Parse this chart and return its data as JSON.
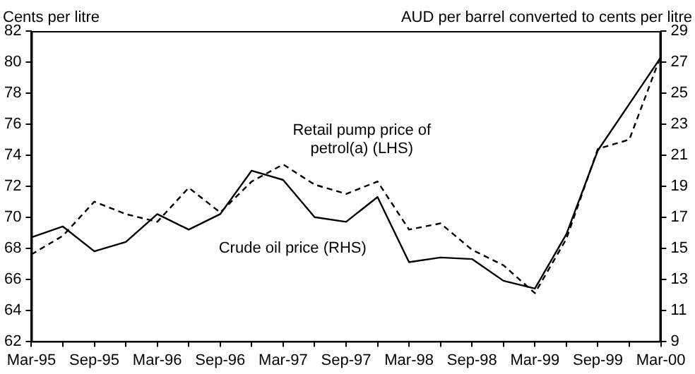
{
  "chart_data": {
    "type": "line",
    "ylabel": "Cents per litre",
    "y2label": "AUD per barrel converted to cents per litre",
    "categories": [
      "Mar-95",
      null,
      "Sep-95",
      null,
      "Mar-96",
      null,
      "Sep-96",
      null,
      "Mar-97",
      null,
      "Sep-97",
      null,
      "Mar-98",
      null,
      "Sep-98",
      null,
      "Mar-99",
      null,
      "Sep-99",
      null,
      "Mar-00"
    ],
    "series": [
      {
        "name": "Retail pump price of petrol(a) (LHS)",
        "color": "#000000",
        "line_style": "dashed",
        "values": [
          67.6,
          68.8,
          71.0,
          70.2,
          69.7,
          71.9,
          70.3,
          72.3,
          73.4,
          72.1,
          71.5,
          72.3,
          69.2,
          69.6,
          67.9,
          66.9,
          65.1,
          68.6,
          74.4,
          75.0,
          80.4
        ]
      },
      {
        "name": "Crude oil price (RHS)",
        "color": "#000000",
        "line_style": "solid",
        "axis": "y2",
        "values": [
          15.7,
          16.4,
          14.8,
          15.4,
          17.2,
          16.2,
          17.2,
          20.0,
          19.4,
          17.0,
          16.7,
          18.3,
          14.1,
          14.4,
          14.3,
          12.9,
          12.4,
          15.9,
          21.3,
          24.3,
          27.3
        ]
      }
    ],
    "ylim": [
      62,
      82
    ],
    "yticks": [
      62,
      64,
      66,
      68,
      70,
      72,
      74,
      76,
      78,
      80,
      82
    ],
    "y2lim": [
      9,
      29
    ],
    "y2ticks": [
      9,
      11,
      13,
      15,
      17,
      19,
      21,
      23,
      25,
      27,
      29
    ],
    "grid": false,
    "legend": false,
    "marker": "none"
  }
}
